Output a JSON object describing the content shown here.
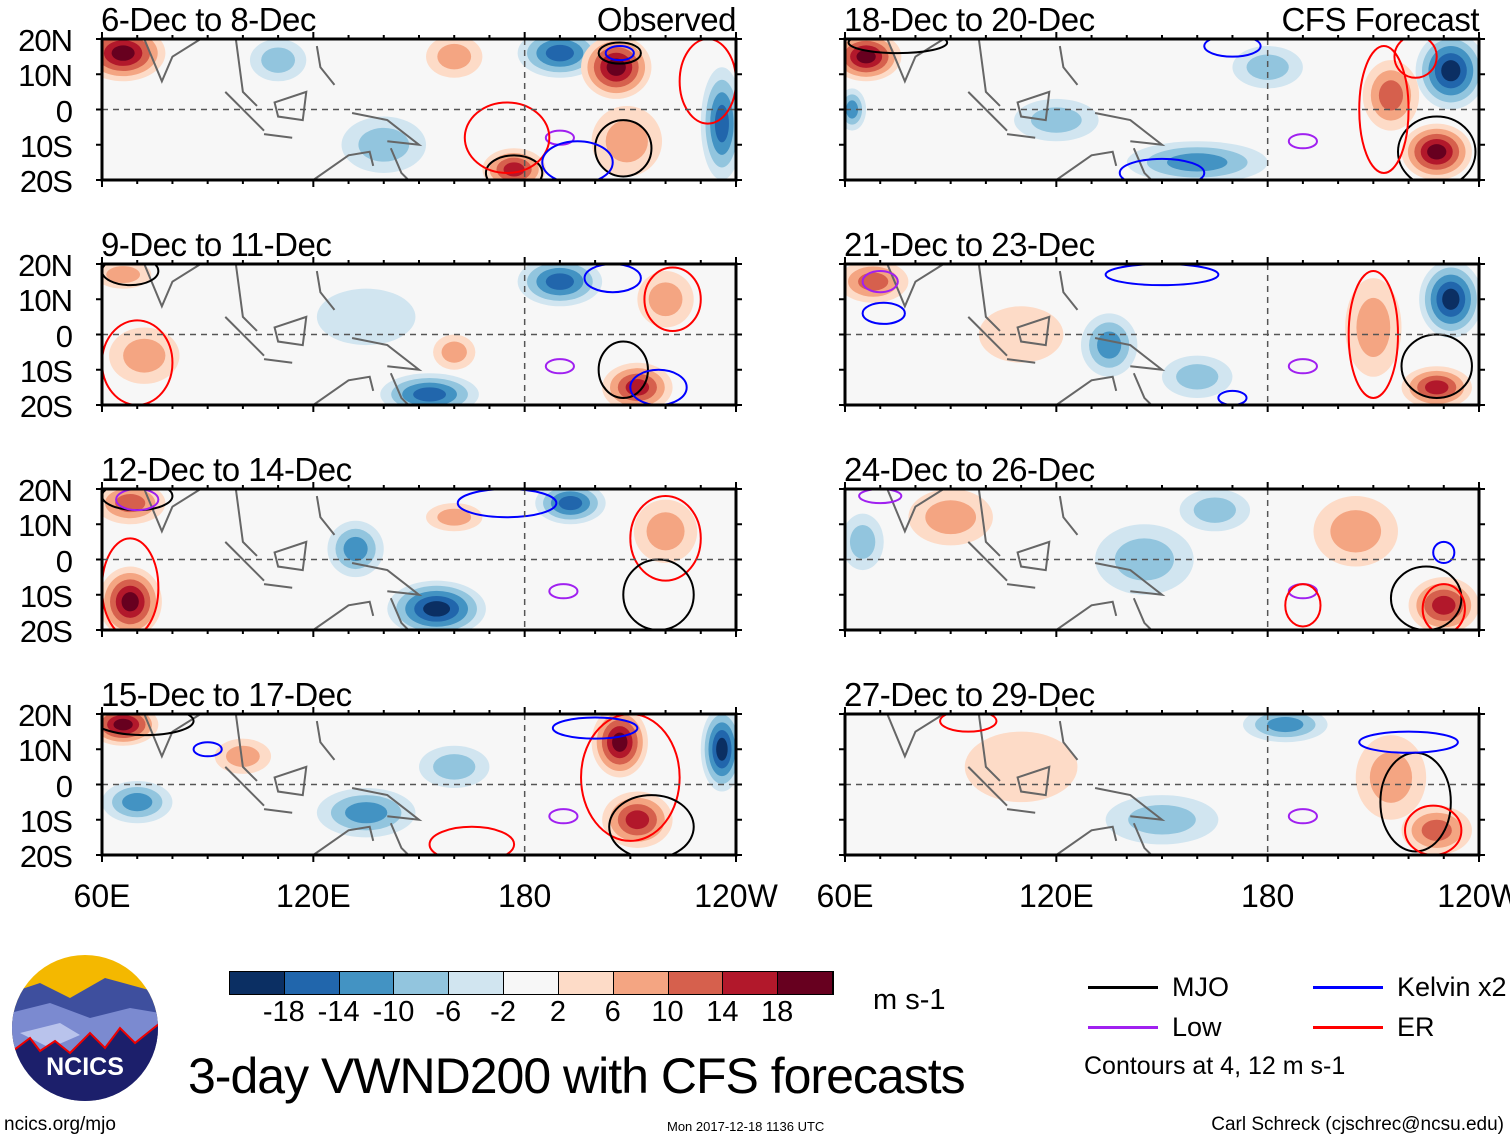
{
  "figure_title": "3-day VWND200 with CFS forecasts",
  "observed_label": "Observed",
  "forecast_label": "CFS Forecast",
  "units": "m s-1",
  "lat_labels": [
    "20N",
    "10N",
    "0",
    "10S",
    "20S"
  ],
  "lon_labels": [
    "60E",
    "120E",
    "180",
    "120W"
  ],
  "logo_text": "NCICS",
  "footer": {
    "left": "ncics.org/mjo",
    "center": "Mon 2017-12-18 1136 UTC",
    "right": "Carl Schreck (cjschrec@ncsu.edu)"
  },
  "legend": {
    "items": [
      {
        "label": "MJO",
        "color": "#000000"
      },
      {
        "label": "Kelvin x2",
        "color": "#0000ff"
      },
      {
        "label": "Low",
        "color": "#a020f0"
      },
      {
        "label": "ER",
        "color": "#ff0000"
      }
    ],
    "note": "Contours at 4, 12 m s-1"
  },
  "colorbar": {
    "labels": [
      "-18",
      "-14",
      "-10",
      "-6",
      "-2",
      "2",
      "6",
      "10",
      "14",
      "18"
    ],
    "colors": [
      "#0b2f63",
      "#2166ac",
      "#4393c3",
      "#92c5de",
      "#d1e5f0",
      "#f7f7f7",
      "#fddbc7",
      "#f4a582",
      "#d6604d",
      "#b2182b",
      "#67001f"
    ]
  },
  "chart_data": {
    "type": "heatmap",
    "variable": "200-hPa meridional wind anomaly",
    "lon_range": [
      60,
      240
    ],
    "lat_range": [
      -20,
      20
    ],
    "panels": [
      {
        "title": "6-Dec to 8-Dec",
        "col": 0,
        "row": 0,
        "anomalies": [
          {
            "lon": 66,
            "lat": 16,
            "rlon": 12,
            "rlat": 8,
            "v": 18
          },
          {
            "lon": 190,
            "lat": 16,
            "rlon": 12,
            "rlat": 7,
            "v": -16
          },
          {
            "lon": 206,
            "lat": 12,
            "rlon": 10,
            "rlat": 9,
            "v": 18
          },
          {
            "lon": 236,
            "lat": -4,
            "rlon": 6,
            "rlat": 16,
            "v": -14
          },
          {
            "lon": 177,
            "lat": -17,
            "rlon": 9,
            "rlat": 6,
            "v": 16
          },
          {
            "lon": 140,
            "lat": -10,
            "rlon": 12,
            "rlat": 8,
            "v": -6
          },
          {
            "lon": 160,
            "lat": 15,
            "rlon": 8,
            "rlat": 6,
            "v": 6
          },
          {
            "lon": 110,
            "lat": 14,
            "rlon": 8,
            "rlat": 6,
            "v": -6
          },
          {
            "lon": 209,
            "lat": -9,
            "rlon": 10,
            "rlat": 10,
            "v": 6
          }
        ],
        "contours": [
          {
            "type": "MJO",
            "lon": 208,
            "lat": -11,
            "rlon": 8,
            "rlat": 8
          },
          {
            "type": "MJO",
            "lon": 177,
            "lat": -18,
            "rlon": 8,
            "rlat": 5
          },
          {
            "type": "MJO",
            "lon": 207,
            "lat": 16,
            "rlon": 6,
            "rlat": 3
          },
          {
            "type": "Kelvin",
            "lon": 207,
            "lat": 16,
            "rlon": 4,
            "rlat": 2
          },
          {
            "type": "Low",
            "lon": 190,
            "lat": -8,
            "rlon": 4,
            "rlat": 2
          },
          {
            "type": "ER",
            "lon": 175,
            "lat": -8,
            "rlon": 12,
            "rlat": 10
          },
          {
            "type": "ER",
            "lon": 232,
            "lat": 8,
            "rlon": 8,
            "rlat": 12
          },
          {
            "type": "Kelvin",
            "lon": 195,
            "lat": -15,
            "rlon": 10,
            "rlat": 6
          }
        ]
      },
      {
        "title": "9-Dec to 11-Dec",
        "col": 0,
        "row": 1,
        "anomalies": [
          {
            "lon": 190,
            "lat": 15,
            "rlon": 12,
            "rlat": 7,
            "v": -14
          },
          {
            "lon": 153,
            "lat": -17,
            "rlon": 14,
            "rlat": 6,
            "v": -14
          },
          {
            "lon": 212,
            "lat": -15,
            "rlon": 10,
            "rlat": 7,
            "v": 14
          },
          {
            "lon": 72,
            "lat": -6,
            "rlon": 10,
            "rlat": 8,
            "v": 6
          },
          {
            "lon": 220,
            "lat": 10,
            "rlon": 8,
            "rlat": 8,
            "v": 6
          },
          {
            "lon": 160,
            "lat": -5,
            "rlon": 6,
            "rlat": 5,
            "v": 6
          },
          {
            "lon": 66,
            "lat": 17,
            "rlon": 8,
            "rlat": 4,
            "v": 6
          },
          {
            "lon": 135,
            "lat": 5,
            "rlon": 14,
            "rlat": 8,
            "v": -2
          }
        ],
        "contours": [
          {
            "type": "ER",
            "lon": 70,
            "lat": -8,
            "rlon": 10,
            "rlat": 12
          },
          {
            "type": "ER",
            "lon": 222,
            "lat": 10,
            "rlon": 8,
            "rlat": 9
          },
          {
            "type": "MJO",
            "lon": 208,
            "lat": -10,
            "rlon": 7,
            "rlat": 8
          },
          {
            "type": "MJO",
            "lon": 68,
            "lat": 18,
            "rlon": 8,
            "rlat": 4
          },
          {
            "type": "Low",
            "lon": 190,
            "lat": -9,
            "rlon": 4,
            "rlat": 2
          },
          {
            "type": "Kelvin",
            "lon": 218,
            "lat": -15,
            "rlon": 8,
            "rlat": 5
          },
          {
            "type": "Kelvin",
            "lon": 205,
            "lat": 16,
            "rlon": 8,
            "rlat": 4
          }
        ]
      },
      {
        "title": "12-Dec to 14-Dec",
        "col": 0,
        "row": 2,
        "anomalies": [
          {
            "lon": 68,
            "lat": -12,
            "rlon": 9,
            "rlat": 10,
            "v": 18
          },
          {
            "lon": 68,
            "lat": 16,
            "rlon": 10,
            "rlat": 6,
            "v": 10
          },
          {
            "lon": 193,
            "lat": 16,
            "rlon": 10,
            "rlat": 6,
            "v": -14
          },
          {
            "lon": 155,
            "lat": -14,
            "rlon": 14,
            "rlat": 8,
            "v": -18
          },
          {
            "lon": 132,
            "lat": 3,
            "rlon": 8,
            "rlat": 8,
            "v": -10
          },
          {
            "lon": 220,
            "lat": 8,
            "rlon": 9,
            "rlat": 9,
            "v": 6
          },
          {
            "lon": 160,
            "lat": 12,
            "rlon": 8,
            "rlat": 4,
            "v": 6
          }
        ],
        "contours": [
          {
            "type": "ER",
            "lon": 68,
            "lat": -8,
            "rlon": 8,
            "rlat": 14
          },
          {
            "type": "ER",
            "lon": 220,
            "lat": 6,
            "rlon": 10,
            "rlat": 12
          },
          {
            "type": "MJO",
            "lon": 218,
            "lat": -10,
            "rlon": 10,
            "rlat": 10
          },
          {
            "type": "MJO",
            "lon": 70,
            "lat": 18,
            "rlon": 10,
            "rlat": 4
          },
          {
            "type": "Low",
            "lon": 70,
            "lat": 17,
            "rlon": 6,
            "rlat": 3
          },
          {
            "type": "Low",
            "lon": 191,
            "lat": -9,
            "rlon": 4,
            "rlat": 2
          },
          {
            "type": "Kelvin",
            "lon": 175,
            "lat": 16,
            "rlon": 14,
            "rlat": 4
          }
        ]
      },
      {
        "title": "15-Dec to 17-Dec",
        "col": 0,
        "row": 3,
        "anomalies": [
          {
            "lon": 66,
            "lat": 17,
            "rlon": 10,
            "rlat": 6,
            "v": 18
          },
          {
            "lon": 207,
            "lat": 12,
            "rlon": 8,
            "rlat": 10,
            "v": 18
          },
          {
            "lon": 212,
            "lat": -10,
            "rlon": 10,
            "rlat": 8,
            "v": 16
          },
          {
            "lon": 236,
            "lat": 10,
            "rlon": 6,
            "rlat": 12,
            "v": -18
          },
          {
            "lon": 70,
            "lat": -5,
            "rlon": 10,
            "rlat": 6,
            "v": -10
          },
          {
            "lon": 135,
            "lat": -8,
            "rlon": 14,
            "rlat": 7,
            "v": -10
          },
          {
            "lon": 160,
            "lat": 5,
            "rlon": 10,
            "rlat": 6,
            "v": -6
          },
          {
            "lon": 100,
            "lat": 8,
            "rlon": 8,
            "rlat": 5,
            "v": 6
          }
        ],
        "contours": [
          {
            "type": "ER",
            "lon": 210,
            "lat": 2,
            "rlon": 14,
            "rlat": 18
          },
          {
            "type": "MJO",
            "lon": 216,
            "lat": -12,
            "rlon": 12,
            "rlat": 9
          },
          {
            "type": "MJO",
            "lon": 72,
            "lat": 18,
            "rlon": 14,
            "rlat": 4
          },
          {
            "type": "Kelvin",
            "lon": 90,
            "lat": 10,
            "rlon": 4,
            "rlat": 2
          },
          {
            "type": "Low",
            "lon": 191,
            "lat": -9,
            "rlon": 4,
            "rlat": 2
          },
          {
            "type": "ER",
            "lon": 165,
            "lat": -17,
            "rlon": 12,
            "rlat": 5
          },
          {
            "type": "Kelvin",
            "lon": 200,
            "lat": 16,
            "rlon": 12,
            "rlat": 3
          }
        ]
      },
      {
        "title": "18-Dec to 20-Dec",
        "col": 1,
        "row": 0,
        "anomalies": [
          {
            "lon": 66,
            "lat": 15,
            "rlon": 10,
            "rlat": 7,
            "v": 18
          },
          {
            "lon": 232,
            "lat": 11,
            "rlon": 10,
            "rlat": 11,
            "v": -18
          },
          {
            "lon": 228,
            "lat": -12,
            "rlon": 10,
            "rlat": 8,
            "v": 18
          },
          {
            "lon": 215,
            "lat": 4,
            "rlon": 8,
            "rlat": 10,
            "v": 10
          },
          {
            "lon": 160,
            "lat": -15,
            "rlon": 20,
            "rlat": 6,
            "v": -10
          },
          {
            "lon": 120,
            "lat": -3,
            "rlon": 12,
            "rlat": 6,
            "v": -6
          },
          {
            "lon": 180,
            "lat": 12,
            "rlon": 10,
            "rlat": 6,
            "v": -6
          },
          {
            "lon": 62,
            "lat": 0,
            "rlon": 4,
            "rlat": 6,
            "v": -10
          }
        ],
        "contours": [
          {
            "type": "MJO",
            "lon": 228,
            "lat": -12,
            "rlon": 11,
            "rlat": 10
          },
          {
            "type": "Low",
            "lon": 190,
            "lat": -9,
            "rlon": 4,
            "rlat": 2
          },
          {
            "type": "ER",
            "lon": 213,
            "lat": 0,
            "rlon": 7,
            "rlat": 18
          },
          {
            "type": "ER",
            "lon": 222,
            "lat": 15,
            "rlon": 6,
            "rlat": 6
          },
          {
            "type": "Kelvin",
            "lon": 170,
            "lat": 18,
            "rlon": 8,
            "rlat": 3
          },
          {
            "type": "MJO",
            "lon": 75,
            "lat": 19,
            "rlon": 14,
            "rlat": 3
          },
          {
            "type": "Kelvin",
            "lon": 150,
            "lat": -18,
            "rlon": 12,
            "rlat": 4
          }
        ]
      },
      {
        "title": "21-Dec to 23-Dec",
        "col": 1,
        "row": 1,
        "anomalies": [
          {
            "lon": 232,
            "lat": 10,
            "rlon": 9,
            "rlat": 11,
            "v": -18
          },
          {
            "lon": 228,
            "lat": -15,
            "rlon": 10,
            "rlat": 6,
            "v": 16
          },
          {
            "lon": 135,
            "lat": -3,
            "rlon": 8,
            "rlat": 9,
            "v": -12
          },
          {
            "lon": 68,
            "lat": 15,
            "rlon": 10,
            "rlat": 6,
            "v": 10
          },
          {
            "lon": 210,
            "lat": 2,
            "rlon": 8,
            "rlat": 14,
            "v": 8
          },
          {
            "lon": 110,
            "lat": 0,
            "rlon": 12,
            "rlat": 8,
            "v": 2
          },
          {
            "lon": 160,
            "lat": -12,
            "rlon": 10,
            "rlat": 6,
            "v": -6
          }
        ],
        "contours": [
          {
            "type": "MJO",
            "lon": 228,
            "lat": -9,
            "rlon": 10,
            "rlat": 9
          },
          {
            "type": "ER",
            "lon": 210,
            "lat": 0,
            "rlon": 7,
            "rlat": 18
          },
          {
            "type": "Low",
            "lon": 190,
            "lat": -9,
            "rlon": 4,
            "rlat": 2
          },
          {
            "type": "Low",
            "lon": 70,
            "lat": 15,
            "rlon": 5,
            "rlat": 3
          },
          {
            "type": "Kelvin",
            "lon": 71,
            "lat": 6,
            "rlon": 6,
            "rlat": 3
          },
          {
            "type": "Kelvin",
            "lon": 150,
            "lat": 17,
            "rlon": 16,
            "rlat": 3
          },
          {
            "type": "Kelvin",
            "lon": 170,
            "lat": -18,
            "rlon": 4,
            "rlat": 2
          }
        ]
      },
      {
        "title": "24-Dec to 26-Dec",
        "col": 1,
        "row": 2,
        "anomalies": [
          {
            "lon": 230,
            "lat": -13,
            "rlon": 10,
            "rlat": 8,
            "v": 16
          },
          {
            "lon": 145,
            "lat": 0,
            "rlon": 14,
            "rlat": 10,
            "v": -6
          },
          {
            "lon": 205,
            "lat": 8,
            "rlon": 12,
            "rlat": 10,
            "v": 6
          },
          {
            "lon": 90,
            "lat": 12,
            "rlon": 12,
            "rlat": 8,
            "v": 6
          },
          {
            "lon": 165,
            "lat": 14,
            "rlon": 10,
            "rlat": 6,
            "v": -6
          },
          {
            "lon": 65,
            "lat": 5,
            "rlon": 6,
            "rlat": 8,
            "v": -6
          }
        ],
        "contours": [
          {
            "type": "MJO",
            "lon": 225,
            "lat": -11,
            "rlon": 10,
            "rlat": 9
          },
          {
            "type": "Kelvin",
            "lon": 230,
            "lat": 2,
            "rlon": 3,
            "rlat": 3
          },
          {
            "type": "Low",
            "lon": 190,
            "lat": -9,
            "rlon": 4,
            "rlat": 2
          },
          {
            "type": "ER",
            "lon": 190,
            "lat": -13,
            "rlon": 5,
            "rlat": 6
          },
          {
            "type": "ER",
            "lon": 230,
            "lat": -14,
            "rlon": 6,
            "rlat": 7
          },
          {
            "type": "Low",
            "lon": 70,
            "lat": 18,
            "rlon": 6,
            "rlat": 2
          }
        ]
      },
      {
        "title": "27-Dec to 29-Dec",
        "col": 1,
        "row": 3,
        "anomalies": [
          {
            "lon": 185,
            "lat": 17,
            "rlon": 12,
            "rlat": 5,
            "v": -10
          },
          {
            "lon": 228,
            "lat": -13,
            "rlon": 10,
            "rlat": 7,
            "v": 12
          },
          {
            "lon": 110,
            "lat": 5,
            "rlon": 16,
            "rlat": 10,
            "v": 2
          },
          {
            "lon": 215,
            "lat": 2,
            "rlon": 10,
            "rlat": 12,
            "v": 6
          },
          {
            "lon": 150,
            "lat": -10,
            "rlon": 16,
            "rlat": 7,
            "v": -6
          }
        ],
        "contours": [
          {
            "type": "MJO",
            "lon": 222,
            "lat": -5,
            "rlon": 10,
            "rlat": 14
          },
          {
            "type": "ER",
            "lon": 227,
            "lat": -13,
            "rlon": 8,
            "rlat": 7
          },
          {
            "type": "Low",
            "lon": 190,
            "lat": -9,
            "rlon": 4,
            "rlat": 2
          },
          {
            "type": "Kelvin",
            "lon": 220,
            "lat": 12,
            "rlon": 14,
            "rlat": 3
          },
          {
            "type": "ER",
            "lon": 95,
            "lat": 18,
            "rlon": 8,
            "rlat": 3
          }
        ]
      }
    ]
  }
}
